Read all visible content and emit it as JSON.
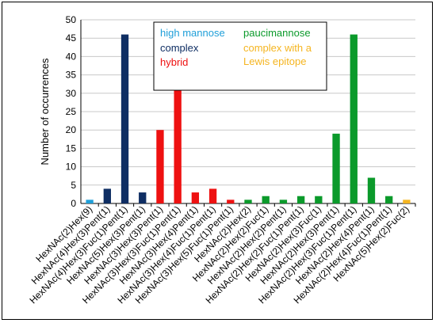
{
  "chart_data": {
    "type": "bar",
    "ylabel": "Number of occurrences",
    "xlabel": "",
    "ylim": [
      0,
      50
    ],
    "ytick_step": 5,
    "grid": "horizontal",
    "legend_position": "top-center",
    "categories": [
      "HexNAc(2)Hex(9)",
      "HexNAc(4)Hex(3)Pent(1)",
      "HexNAc(4)Hex(3)Fuc(1)Pent(1)",
      "HexNAc(5)Hex(3)Pent(1)",
      "HexNAc(3)Hex(3)Pent(1)",
      "HexNAc(3)Hex(3)Fuc(1)Pent(1)",
      "HexNAc(3)Hex(4)Pent(1)",
      "HexNAc(3)Hex(4)Fuc(1)Pent(1)",
      "HexNAc(3)Hex(5)Fuc(1)Pent(1)",
      "HexNAc(2)Hex(2)",
      "HexNAc(2)Hex(2)Fuc(1)",
      "HexNAc(2)Hex(2)Pent(1)",
      "HexNAc(2)Hex(2)Fuc(1)Pent(1)",
      "HexNAc(2)Hex(3)Fuc(1)",
      "HexNAc(2)Hex(3)Pent(1)",
      "HexNAc(2)Hex(3)Fuc(1)Pent(1)",
      "HexNAc(2)Hex(4)Pent(1)",
      "HexNAc(2)Hex(4)Fuc(1)Pent(1)",
      "HexNAc(5)Hex(2)Fuc(2)"
    ],
    "values": [
      1,
      4,
      46,
      3,
      20,
      31,
      3,
      4,
      1,
      1,
      2,
      1,
      2,
      2,
      19,
      46,
      7,
      2,
      1
    ],
    "groups": [
      "high mannose",
      "complex",
      "complex",
      "complex",
      "hybrid",
      "hybrid",
      "hybrid",
      "hybrid",
      "hybrid",
      "paucimannose",
      "paucimannose",
      "paucimannose",
      "paucimannose",
      "paucimannose",
      "paucimannose",
      "paucimannose",
      "paucimannose",
      "paucimannose",
      "complex with a Lewis epitope"
    ],
    "legend": [
      {
        "label": "high mannose",
        "color": "#1f9fd9"
      },
      {
        "label": "complex",
        "color": "#0f2e63"
      },
      {
        "label": "hybrid",
        "color": "#ee1111"
      },
      {
        "label": "paucimannose",
        "color": "#0b9a2b"
      },
      {
        "label": "complex with a Lewis epitope",
        "lines": [
          "complex with a",
          "Lewis epitope"
        ],
        "color": "#f5b520"
      }
    ]
  }
}
